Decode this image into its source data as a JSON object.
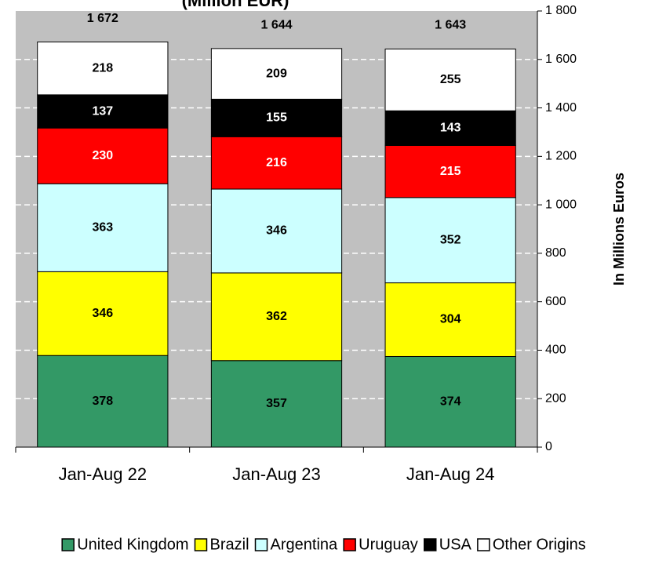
{
  "chart_data": {
    "type": "stacked_bar",
    "title": "(Million EUR)",
    "categories": [
      "Jan-Aug 22",
      "Jan-Aug 23",
      "Jan-Aug 24"
    ],
    "series": [
      {
        "name": "United Kingdom",
        "color": "#339966",
        "values": [
          378,
          357,
          374
        ]
      },
      {
        "name": "Brazil",
        "color": "#ffff00",
        "values": [
          346,
          362,
          304
        ]
      },
      {
        "name": "Argentina",
        "color": "#ccffff",
        "values": [
          363,
          346,
          352
        ]
      },
      {
        "name": "Uruguay",
        "color": "#ff0000",
        "values": [
          230,
          216,
          215
        ]
      },
      {
        "name": "USA",
        "color": "#000000",
        "values": [
          137,
          155,
          143
        ]
      },
      {
        "name": "Other Origins",
        "color": "#ffffff",
        "values": [
          218,
          209,
          255
        ]
      }
    ],
    "totals": [
      1672,
      1644,
      1643
    ],
    "total_labels": [
      "1 672",
      "1 644",
      "1 643"
    ],
    "y_label": "In Millions Euros",
    "ylim": [
      0,
      1800
    ],
    "yticks": [
      0,
      200,
      400,
      600,
      800,
      {
        "value": 1000,
        "label": "1 000"
      },
      {
        "value": 1200,
        "label": "1 200"
      },
      {
        "value": 1400,
        "label": "1 400"
      },
      {
        "value": 1600,
        "label": "1 600"
      },
      {
        "value": 1800,
        "label": "1 800"
      }
    ],
    "grid": true,
    "legend": "bottom"
  }
}
